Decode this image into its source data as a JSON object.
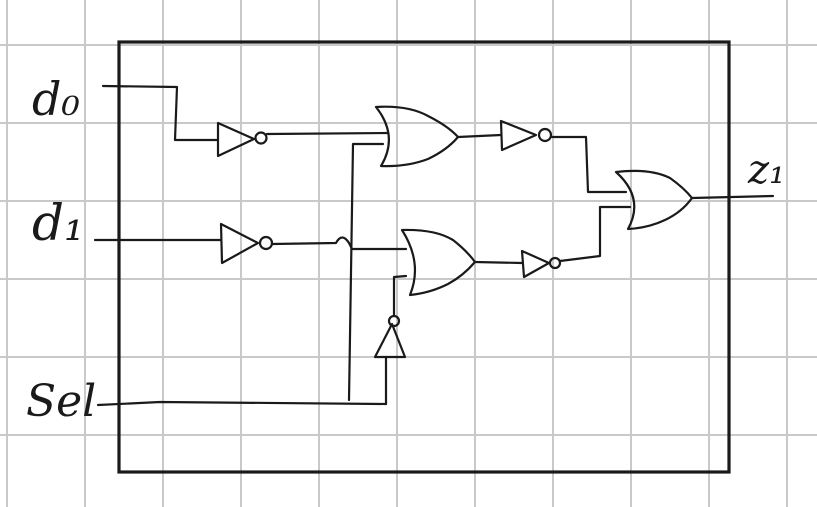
{
  "labels": {
    "input_d0": "d₀",
    "input_d1": "d₁",
    "input_sel": "Sel",
    "output_z": "z₁"
  },
  "colors": {
    "ink": "#1a1a1a",
    "grid": "#c9c9c9",
    "paper": "#ffffff"
  }
}
